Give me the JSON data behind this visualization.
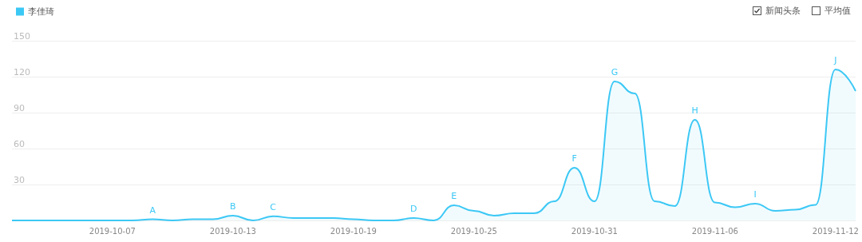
{
  "chart_data": {
    "type": "area",
    "legend": "top left",
    "grid": "y",
    "marker": "none",
    "line_style": "solid",
    "xlim": [
      "2019-10-02",
      "2019-11-13"
    ],
    "xticks": [
      "2019-10-07",
      "2019-10-13",
      "2019-10-19",
      "2019-10-25",
      "2019-10-31",
      "2019-11-06",
      "2019-11-12"
    ],
    "ylim": [
      0,
      150
    ],
    "yticks": [
      {
        "value": 0,
        "label": null
      },
      30,
      60,
      90,
      120,
      150
    ],
    "x": [
      "2019-10-02",
      "2019-10-03",
      "2019-10-04",
      "2019-10-05",
      "2019-10-06",
      "2019-10-07",
      "2019-10-08",
      "2019-10-09",
      "2019-10-10",
      "2019-10-11",
      "2019-10-12",
      "2019-10-13",
      "2019-10-14",
      "2019-10-15",
      "2019-10-16",
      "2019-10-17",
      "2019-10-18",
      "2019-10-19",
      "2019-10-20",
      "2019-10-21",
      "2019-10-22",
      "2019-10-23",
      "2019-10-24",
      "2019-10-25",
      "2019-10-26",
      "2019-10-27",
      "2019-10-28",
      "2019-10-29",
      "2019-10-30",
      "2019-10-31",
      "2019-11-01",
      "2019-11-02",
      "2019-11-03",
      "2019-11-04",
      "2019-11-05",
      "2019-11-06",
      "2019-11-07",
      "2019-11-08",
      "2019-11-09",
      "2019-11-10",
      "2019-11-11",
      "2019-11-12",
      "2019-11-13"
    ],
    "series": [
      {
        "name": "李佳琦",
        "color": "#3cc8f5",
        "values": [
          0,
          0,
          0,
          0,
          0,
          0,
          0,
          1,
          0,
          1,
          1,
          4,
          0,
          3.5,
          2,
          2,
          2,
          1,
          0,
          0,
          2,
          0,
          12.6,
          8,
          4,
          6,
          6,
          16,
          44,
          16,
          116,
          106,
          16,
          12,
          84,
          15,
          11,
          14,
          8,
          9,
          13,
          126,
          108
        ]
      }
    ],
    "annotations": [
      {
        "text": "A",
        "x": "2019-10-09",
        "y": 1
      },
      {
        "text": "B",
        "x": "2019-10-13",
        "y": 4
      },
      {
        "text": "C",
        "x": "2019-10-15",
        "y": 3.5
      },
      {
        "text": "D",
        "x": "2019-10-22",
        "y": 2
      },
      {
        "text": "E",
        "x": "2019-10-24",
        "y": 12.6
      },
      {
        "text": "F",
        "x": "2019-10-30",
        "y": 44
      },
      {
        "text": "G",
        "x": "2019-11-01",
        "y": 116
      },
      {
        "text": "H",
        "x": "2019-11-05",
        "y": 84
      },
      {
        "text": "I",
        "x": "2019-11-08",
        "y": 14
      },
      {
        "text": "J",
        "x": "2019-11-12",
        "y": 126
      },
      "新闻头条",
      "平均值"
    ]
  }
}
